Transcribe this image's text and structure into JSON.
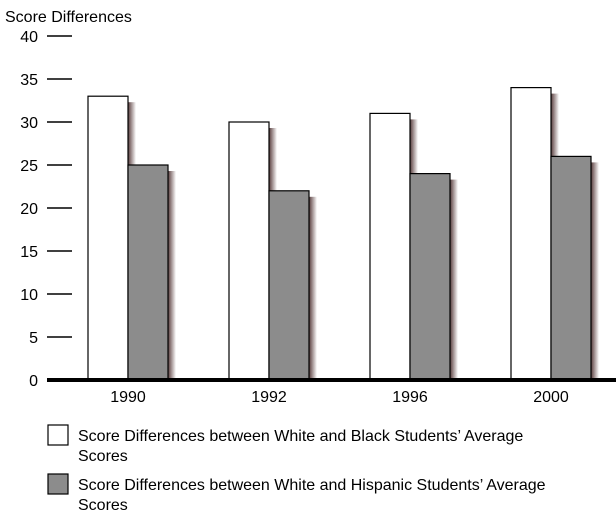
{
  "chart_data": {
    "type": "bar",
    "title": "",
    "xlabel": "",
    "ylabel": "Score Differences",
    "ylim": [
      0,
      40
    ],
    "y_ticks": [
      "0",
      "5",
      "10",
      "15",
      "20",
      "25",
      "30",
      "35",
      "40"
    ],
    "categories": [
      "1990",
      "1992",
      "1996",
      "2000"
    ],
    "series": [
      {
        "name": "Score Differences between White and Black Students’ Average Scores",
        "legend_lines": [
          "Score Differences between White and Black Students’ Average",
          "Scores"
        ],
        "color": "#ffffff",
        "values": [
          33,
          30,
          31,
          34
        ]
      },
      {
        "name": "Score Differences between White and Hispanic Students’ Average Scores",
        "legend_lines": [
          "Score Differences between White and Hispanic Students’ Average",
          "Scores"
        ],
        "color": "#8c8c8c",
        "values": [
          25,
          22,
          24,
          26
        ]
      }
    ],
    "grid": false,
    "legend_position": "bottom-left"
  }
}
